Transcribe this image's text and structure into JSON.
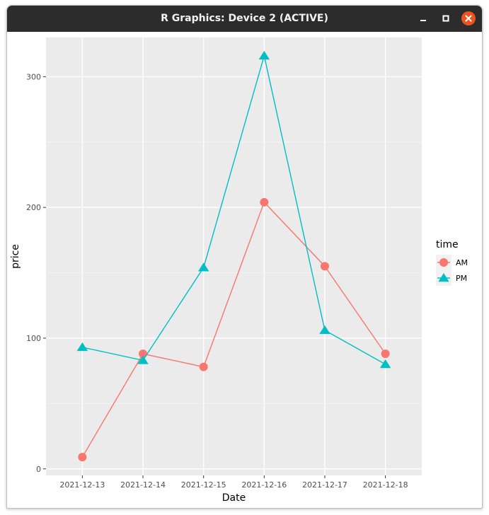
{
  "window": {
    "title": "R Graphics: Device 2 (ACTIVE)",
    "controls": [
      "minimize-icon",
      "maximize-icon",
      "close-icon"
    ],
    "close_color": "#e9541f"
  },
  "chart_data": {
    "type": "line",
    "title": "",
    "xlabel": "Date",
    "ylabel": "price",
    "categories": [
      "2021-12-13",
      "2021-12-14",
      "2021-12-15",
      "2021-12-16",
      "2021-12-17",
      "2021-12-18"
    ],
    "yticks": [
      0,
      100,
      200,
      300
    ],
    "ylim": [
      -5,
      330
    ],
    "grid": true,
    "panel_background": "#ebebeb",
    "legend": {
      "title": "time",
      "position": "right",
      "entries": [
        "AM",
        "PM"
      ]
    },
    "series": [
      {
        "name": "AM",
        "color": "#f8766d",
        "marker": "circle",
        "values": [
          9,
          88,
          78,
          204,
          155,
          88
        ]
      },
      {
        "name": "PM",
        "color": "#00bfc4",
        "marker": "triangle",
        "values": [
          93,
          83,
          154,
          316,
          106,
          80
        ]
      }
    ]
  }
}
